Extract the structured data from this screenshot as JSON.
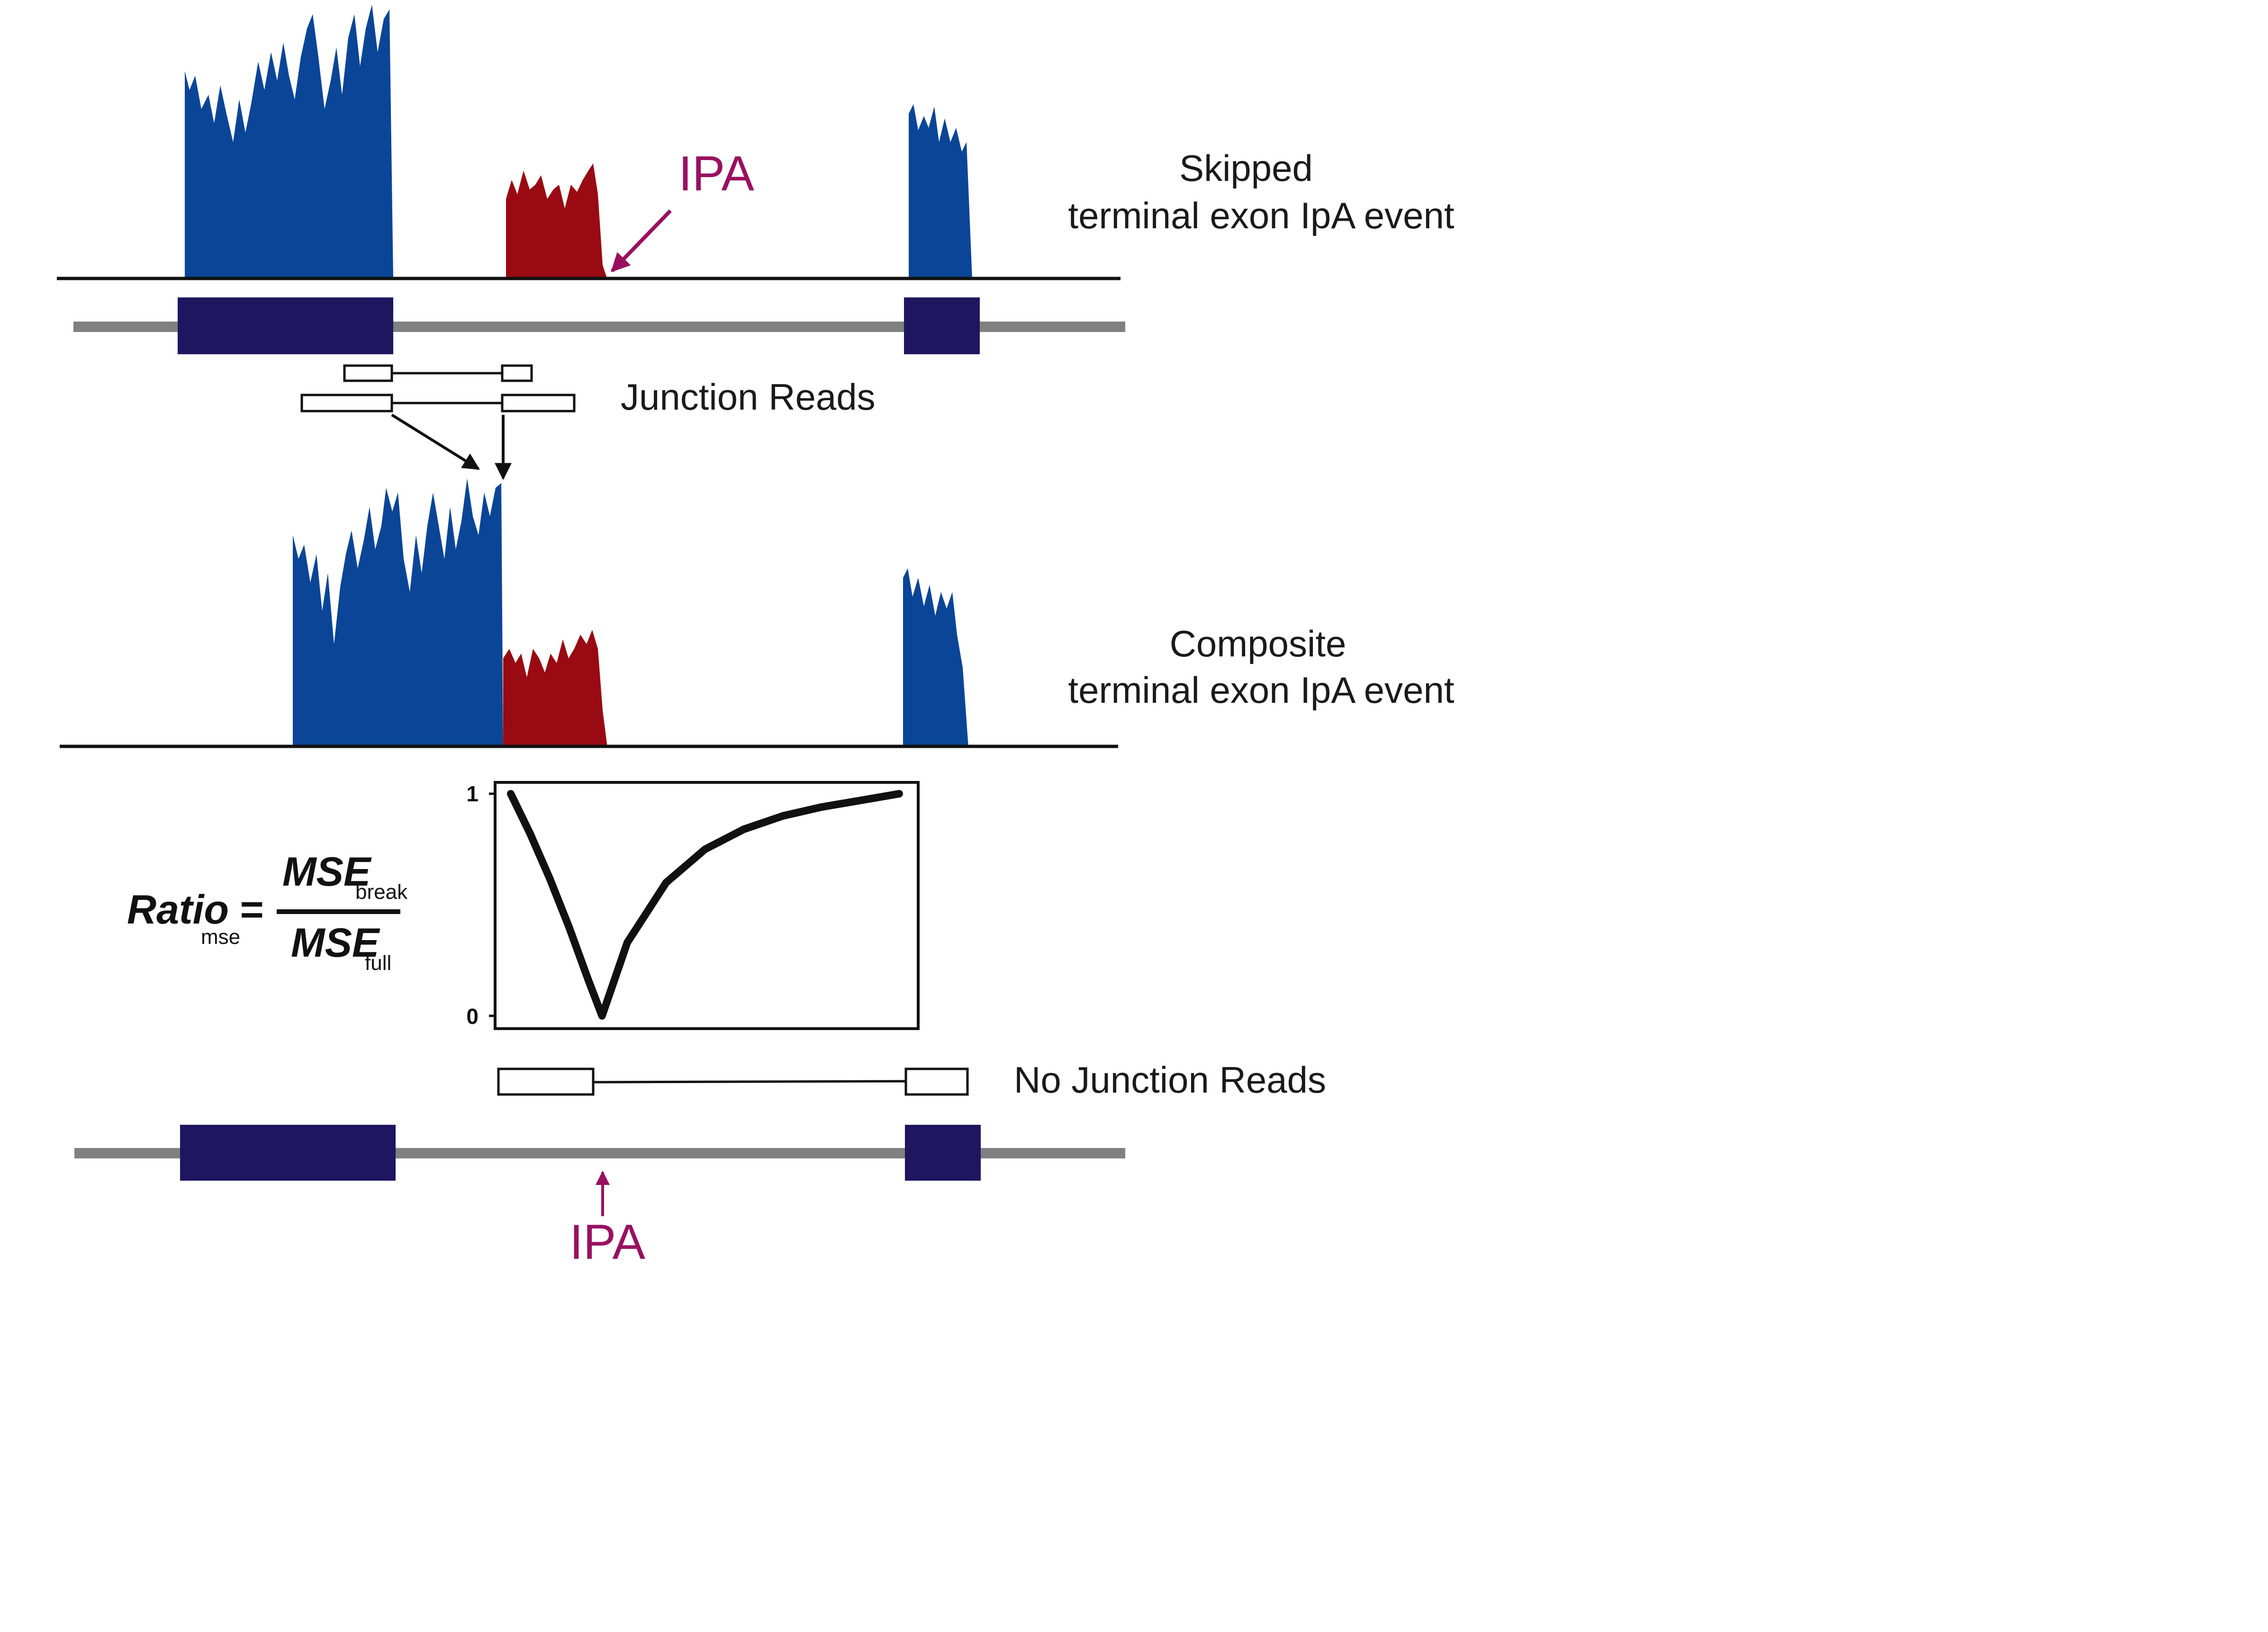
{
  "labels": {
    "skipped_line1": "Skipped",
    "skipped_line2": "terminal exon IpA event",
    "junction_reads": "Junction Reads",
    "composite_line1": "Composite",
    "composite_line2": "terminal exon IpA event",
    "no_junction_reads": "No Junction Reads",
    "ipa_top": "IPA",
    "ipa_bottom": "IPA"
  },
  "equation": {
    "lhs": "Ratio",
    "lhs_sub": "mse",
    "equals": "=",
    "num": "MSE",
    "num_sub": "break",
    "den": "MSE",
    "den_sub": "full"
  },
  "chart_data": {
    "type": "line",
    "title": "",
    "xlabel": "",
    "ylabel": "",
    "ylim": [
      0,
      1
    ],
    "yticks": [
      "0",
      "1"
    ],
    "series": [
      {
        "x": [
          0.0,
          0.05,
          0.1,
          0.15,
          0.2,
          0.235,
          0.3,
          0.4,
          0.5,
          0.6,
          0.7,
          0.8,
          0.9,
          1.0
        ],
        "y": [
          1.0,
          0.82,
          0.62,
          0.4,
          0.16,
          0.0,
          0.33,
          0.6,
          0.75,
          0.84,
          0.9,
          0.94,
          0.97,
          1.0
        ]
      }
    ]
  },
  "colors": {
    "coverage_blue": "#0a4597",
    "coverage_red": "#990a12",
    "exon_navy": "#1e1760",
    "intron_gray": "#808080",
    "ipa_magenta": "#98105f"
  }
}
